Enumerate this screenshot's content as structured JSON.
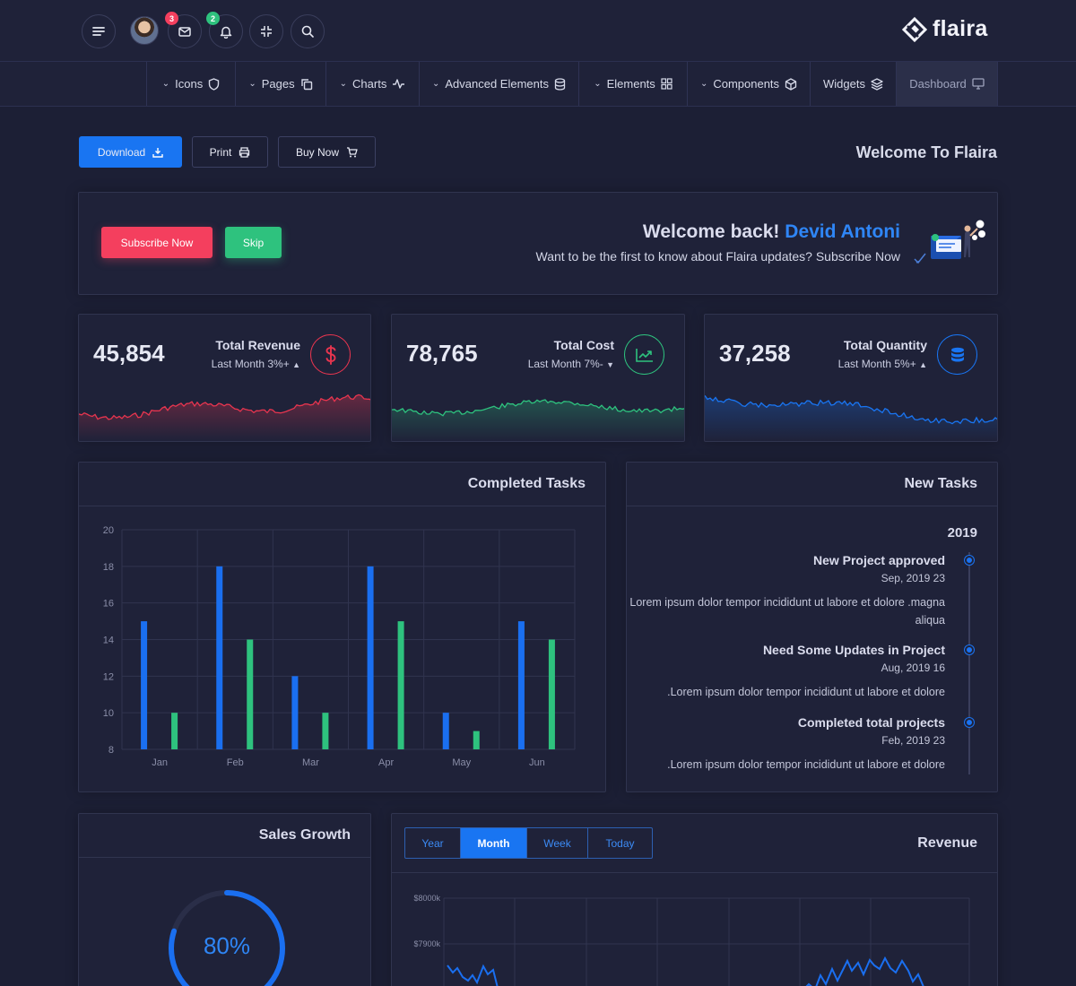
{
  "header": {
    "notifications": {
      "mail_count": "3",
      "bell_count": "2"
    },
    "brand": "flaira",
    "colors": {
      "accent": "#1975f2",
      "danger": "#f43f5e",
      "success": "#2ec27e"
    }
  },
  "nav": {
    "items": [
      {
        "label": "Icons",
        "icon": "shield-icon"
      },
      {
        "label": "Pages",
        "icon": "copy-icon"
      },
      {
        "label": "Charts",
        "icon": "activity-icon"
      },
      {
        "label": "Advanced Elements",
        "icon": "database-icon"
      },
      {
        "label": "Elements",
        "icon": "grid-icon"
      },
      {
        "label": "Components",
        "icon": "box-icon"
      },
      {
        "label": "Widgets",
        "icon": "layers-icon"
      },
      {
        "label": "Dashboard",
        "icon": "monitor-icon"
      }
    ]
  },
  "toolbar": {
    "download_label": "Download",
    "print_label": "Print",
    "buy_label": "Buy Now",
    "page_title": "Welcome To Flaira"
  },
  "welcome": {
    "greeting": "Welcome back!",
    "user_name": "Devid Antoni",
    "message": "Want to be the first to know about Flaira updates? Subscribe Now",
    "subscribe_label": "Subscribe Now",
    "skip_label": "Skip"
  },
  "stats": [
    {
      "value": "45,854",
      "title": "Total Revenue",
      "sub": "Last Month 3%+",
      "trend": "up",
      "icon": "dollar-icon",
      "color": "#e8354f"
    },
    {
      "value": "78,765",
      "title": "Total Cost",
      "sub": "Last Month 7%-",
      "trend": "down",
      "icon": "trending-up-icon",
      "color": "#2ec27e"
    },
    {
      "value": "37,258",
      "title": "Total Quantity",
      "sub": "Last Month 5%+",
      "trend": "up",
      "icon": "database-icon",
      "color": "#1975f2"
    }
  ],
  "completed_tasks": {
    "title": "Completed Tasks",
    "chart_data": {
      "type": "bar",
      "categories": [
        "Jan",
        "Feb",
        "Mar",
        "Apr",
        "May",
        "Jun"
      ],
      "series": [
        {
          "values": [
            15,
            18,
            12,
            18,
            10,
            15
          ],
          "color": "#1a6ff0"
        },
        {
          "values": [
            10,
            14,
            10,
            15,
            9,
            14
          ],
          "color": "#2ec27e"
        }
      ],
      "ylim": [
        8,
        20
      ],
      "yticks": [
        "8",
        "10",
        "12",
        "14",
        "16",
        "18",
        "20"
      ],
      "grid": true
    }
  },
  "new_tasks": {
    "title": "New Tasks",
    "year": "2019",
    "items": [
      {
        "title": "New Project approved",
        "date": "Sep, 2019 23",
        "text": "Lorem ipsum dolor tempor incididunt ut labore et dolore .magna aliqua"
      },
      {
        "title": "Need Some Updates in Project",
        "date": "Aug, 2019 16",
        "text": ".Lorem ipsum dolor tempor incididunt ut labore et dolore"
      },
      {
        "title": "Completed total projects",
        "date": "Feb, 2019 23",
        "text": ".Lorem ipsum dolor tempor incididunt ut labore et dolore"
      }
    ]
  },
  "sales_growth": {
    "title": "Sales Growth",
    "value": "80%",
    "percent": 80
  },
  "revenue": {
    "title": "Revenue",
    "tabs": [
      "Year",
      "Month",
      "Week",
      "Today"
    ],
    "active_tab": "Month",
    "chart_data": {
      "type": "line",
      "yticks": [
        "$8000k",
        "$7900k"
      ],
      "grid": true,
      "color": "#1a6ff0"
    }
  }
}
